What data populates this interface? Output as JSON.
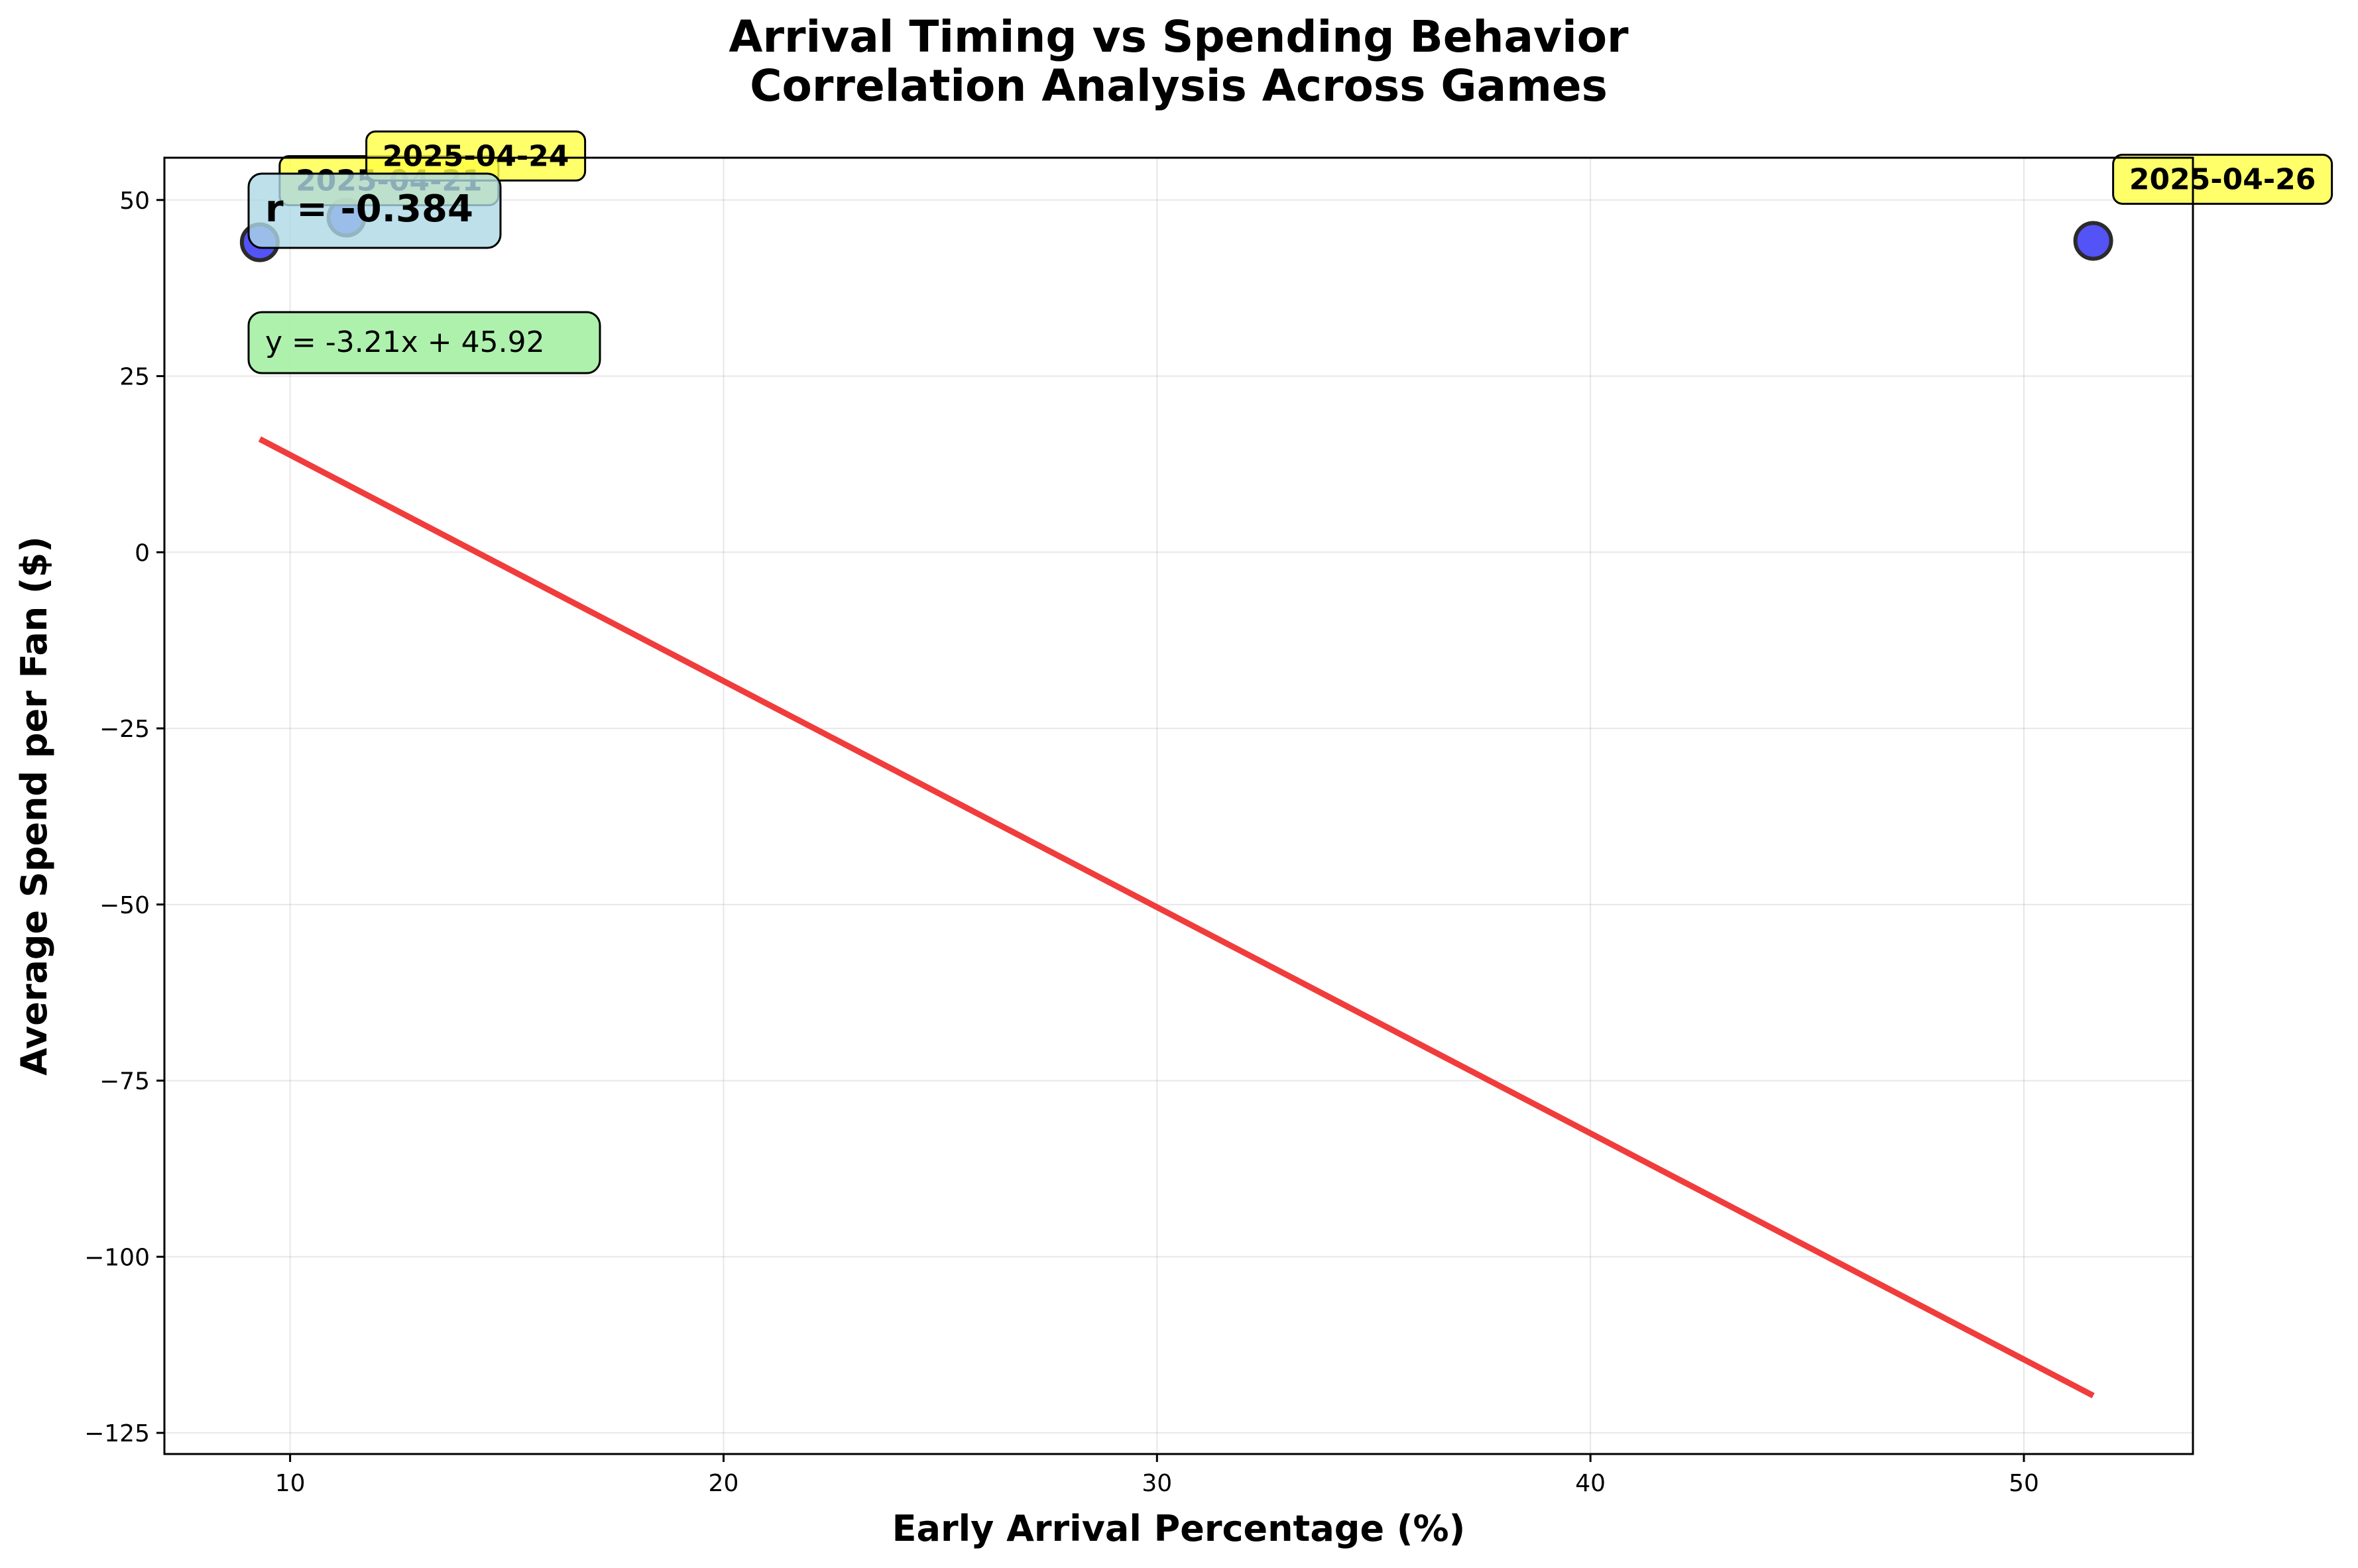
{
  "chart_data": {
    "type": "scatter",
    "title": "Arrival Timing vs Spending Behavior",
    "subtitle": "Correlation Analysis Across Games",
    "xlabel": "Early Arrival Percentage (%)",
    "ylabel": "Average Spend per Fan ($)",
    "xlim": [
      7.1,
      53.9
    ],
    "ylim": [
      -128,
      56
    ],
    "x_ticks": [
      10,
      20,
      30,
      40,
      50
    ],
    "y_ticks": [
      50,
      25,
      0,
      -25,
      -50,
      -75,
      -100,
      -125
    ],
    "grid": true,
    "points": [
      {
        "x": 9.3,
        "y": 44.0,
        "label": "2025-04-21"
      },
      {
        "x": 11.3,
        "y": 47.5,
        "label": "2025-04-24"
      },
      {
        "x": 51.6,
        "y": 44.2,
        "label": "2025-04-26"
      }
    ],
    "trendline": {
      "slope": -3.21,
      "intercept": 45.92,
      "x_range": [
        9.3,
        51.6
      ]
    },
    "correlation_text": "r = -0.384",
    "equation_text": "y = -3.21x + 45.92",
    "colors": {
      "point_fill": "#4a4af5",
      "point_edge": "#2b2b2b",
      "trendline": "#f03232",
      "label_box": "#ffff44",
      "corr_box": "#add8e6",
      "eq_box": "#a4f0a4"
    }
  }
}
